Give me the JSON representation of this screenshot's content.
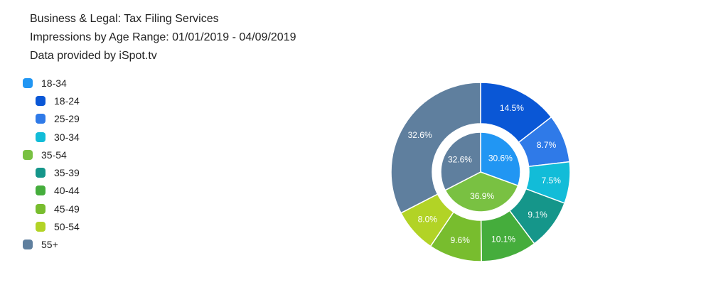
{
  "header": {
    "line1": "Business & Legal: Tax Filing Services",
    "line2": "Impressions by Age Range: 01/01/2019 - 04/09/2019",
    "line3": "Data provided by iSpot.tv"
  },
  "legend": [
    {
      "label": "18-34",
      "color": "#2196f3",
      "level": 0
    },
    {
      "label": "18-24",
      "color": "#0a57d6",
      "level": 1
    },
    {
      "label": "25-29",
      "color": "#2f7ae8",
      "level": 1
    },
    {
      "label": "30-34",
      "color": "#12bcd8",
      "level": 1
    },
    {
      "label": "35-54",
      "color": "#79c142",
      "level": 0
    },
    {
      "label": "35-39",
      "color": "#15968a",
      "level": 1
    },
    {
      "label": "40-44",
      "color": "#45ad3c",
      "level": 1
    },
    {
      "label": "45-49",
      "color": "#78bd2e",
      "level": 1
    },
    {
      "label": "50-54",
      "color": "#b2d326",
      "level": 1
    },
    {
      "label": "55+",
      "color": "#5f7f9e",
      "level": 0
    }
  ],
  "chart_data": {
    "type": "pie",
    "variant": "nested-donut",
    "inner": [
      {
        "name": "18-34",
        "value": 30.6,
        "label": "30.6%",
        "color": "#2196f3"
      },
      {
        "name": "35-54",
        "value": 36.9,
        "label": "36.9%",
        "color": "#79c142"
      },
      {
        "name": "55+",
        "value": 32.6,
        "label": "32.6%",
        "color": "#5f7f9e"
      }
    ],
    "outer": [
      {
        "name": "18-24",
        "value": 14.5,
        "label": "14.5%",
        "color": "#0a57d6"
      },
      {
        "name": "25-29",
        "value": 8.7,
        "label": "8.7%",
        "color": "#2f7ae8"
      },
      {
        "name": "30-34",
        "value": 7.5,
        "label": "7.5%",
        "color": "#12bcd8"
      },
      {
        "name": "35-39",
        "value": 9.1,
        "label": "9.1%",
        "color": "#15968a"
      },
      {
        "name": "40-44",
        "value": 10.1,
        "label": "10.1%",
        "color": "#45ad3c"
      },
      {
        "name": "45-49",
        "value": 9.6,
        "label": "9.6%",
        "color": "#78bd2e"
      },
      {
        "name": "50-54",
        "value": 8.0,
        "label": "8.0%",
        "color": "#b2d326"
      },
      {
        "name": "55+",
        "value": 32.6,
        "label": "32.6%",
        "color": "#5f7f9e"
      }
    ]
  }
}
